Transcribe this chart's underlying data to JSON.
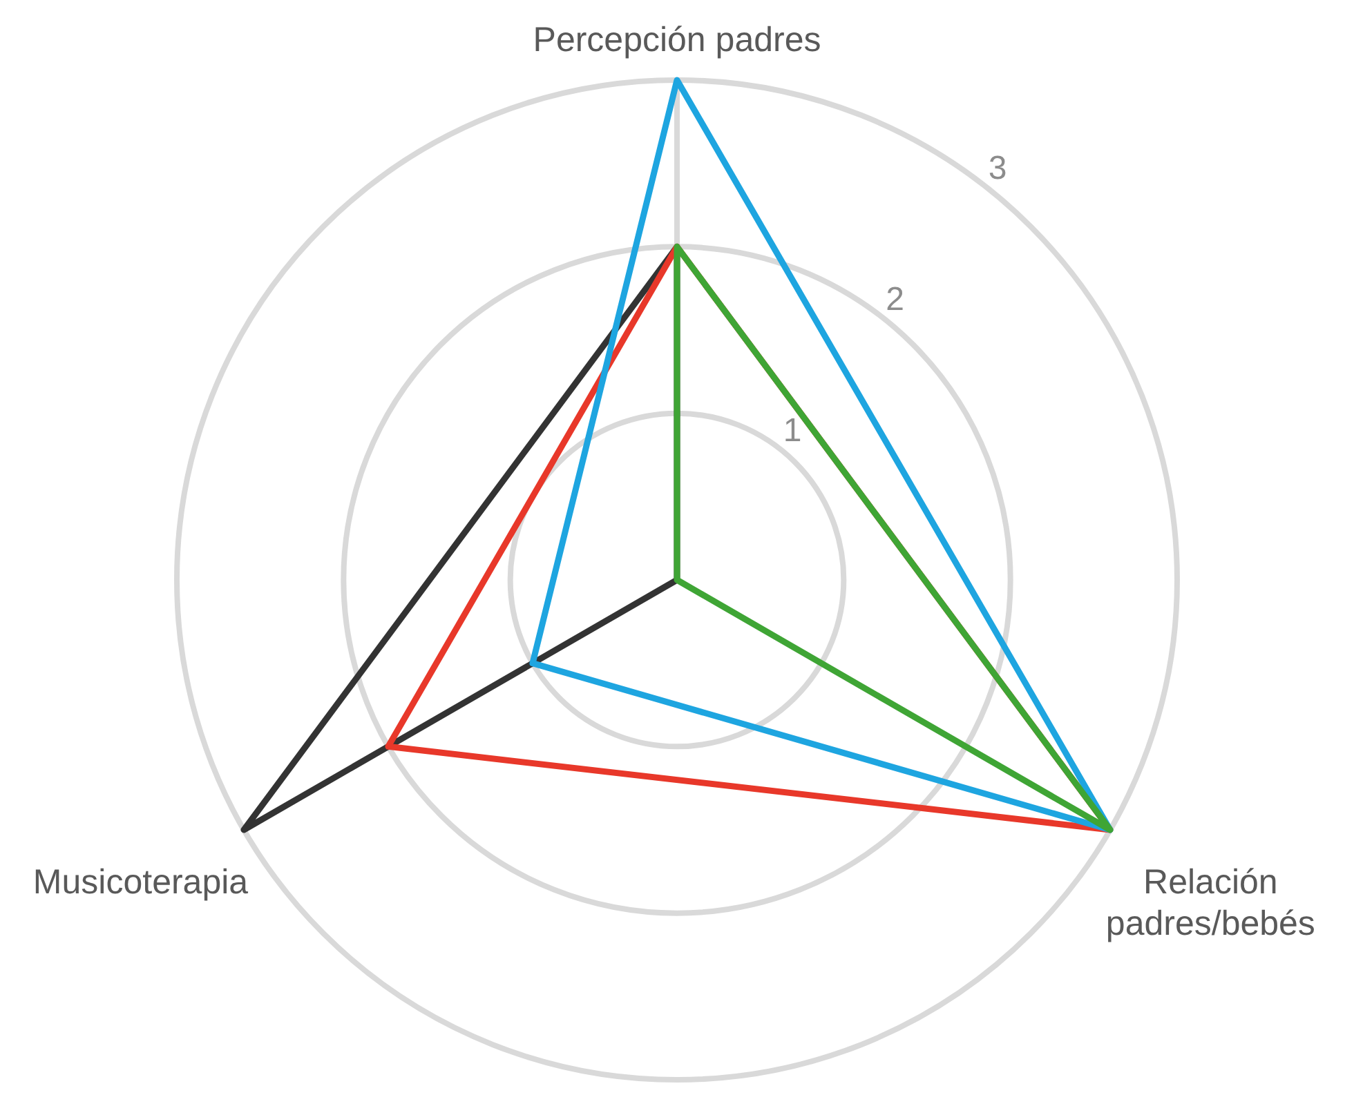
{
  "chart_data": {
    "type": "radar",
    "categories": [
      "Percepción padres",
      "Relación padres/bebés",
      "Musicoterapia"
    ],
    "series": [
      {
        "color": "#3fa535",
        "values": [
          2,
          3,
          0
        ]
      },
      {
        "color": "#1ea5e0",
        "values": [
          3,
          3,
          1
        ]
      },
      {
        "color": "#e8382a",
        "values": [
          2,
          3,
          2
        ]
      },
      {
        "color": "#333333",
        "values": [
          2,
          0,
          3
        ]
      }
    ],
    "ylim": [
      0,
      3
    ],
    "yticks": [
      1,
      2,
      3
    ],
    "grid": true,
    "legend": false,
    "marker": "none",
    "line_style": "solid"
  }
}
